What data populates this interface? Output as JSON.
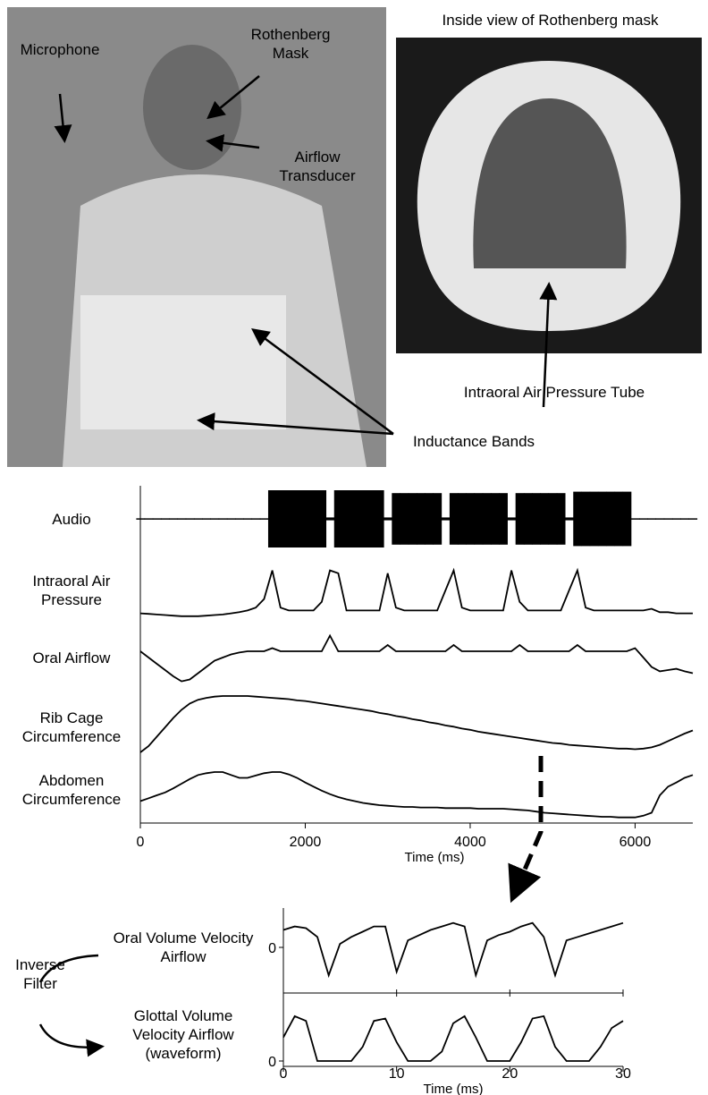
{
  "photos": {
    "left": {
      "labels": [
        "Microphone",
        "Rothenberg Mask",
        "Airflow Transducer",
        "Inductance Bands"
      ]
    },
    "right": {
      "title": "Inside view of Rothenberg mask",
      "labels": [
        "Intraoral Air Pressure Tube"
      ]
    }
  },
  "inverse_filter": "Inverse Filter",
  "chart_data": [
    {
      "type": "line",
      "xlabel": "Time (ms)",
      "xlim": [
        0,
        6700
      ],
      "xticks": [
        0,
        2000,
        4000,
        6000
      ],
      "ylim": [
        0,
        1
      ],
      "x": [
        0,
        100,
        200,
        300,
        400,
        500,
        600,
        700,
        800,
        900,
        1000,
        1100,
        1200,
        1300,
        1400,
        1500,
        1600,
        1700,
        1800,
        1900,
        2000,
        2100,
        2200,
        2300,
        2400,
        2500,
        2600,
        2700,
        2800,
        2900,
        3000,
        3100,
        3200,
        3300,
        3400,
        3500,
        3600,
        3700,
        3800,
        3900,
        4000,
        4100,
        4200,
        4300,
        4400,
        4500,
        4600,
        4700,
        4800,
        4900,
        5000,
        5100,
        5200,
        5300,
        5400,
        5500,
        5600,
        5700,
        5800,
        5900,
        6000,
        6100,
        6200,
        6300,
        6400,
        6500,
        6600,
        6700
      ],
      "series": [
        {
          "name": "Audio",
          "style": "envelope",
          "color": "#000",
          "values": [
            0.02,
            0.02,
            0.02,
            0.02,
            0.02,
            0.02,
            0.02,
            0.02,
            0.02,
            0.02,
            0.02,
            0.02,
            0.02,
            0.02,
            0.02,
            0.02,
            1,
            1,
            1,
            1,
            1,
            1,
            1,
            0.05,
            1,
            1,
            1,
            1,
            1,
            1,
            0.05,
            0.9,
            0.9,
            0.9,
            0.9,
            0.9,
            0.9,
            0.05,
            0.9,
            0.9,
            0.9,
            0.9,
            0.9,
            0.9,
            0.9,
            0.05,
            0.9,
            0.9,
            0.9,
            0.9,
            0.9,
            0.9,
            0.05,
            0.95,
            0.95,
            0.95,
            0.95,
            0.95,
            0.95,
            0.95,
            0.02,
            0.02,
            0.02,
            0.02,
            0.02,
            0.02,
            0.02,
            0.02
          ]
        },
        {
          "name": "Intraoral Air Pressure",
          "style": "line",
          "color": "#000",
          "values": [
            0.1,
            0.09,
            0.08,
            0.07,
            0.06,
            0.05,
            0.05,
            0.05,
            0.06,
            0.07,
            0.08,
            0.1,
            0.12,
            0.15,
            0.2,
            0.35,
            0.85,
            0.2,
            0.15,
            0.15,
            0.15,
            0.15,
            0.3,
            0.85,
            0.8,
            0.15,
            0.15,
            0.15,
            0.15,
            0.15,
            0.8,
            0.2,
            0.15,
            0.15,
            0.15,
            0.15,
            0.15,
            0.5,
            0.85,
            0.2,
            0.15,
            0.15,
            0.15,
            0.15,
            0.15,
            0.85,
            0.3,
            0.15,
            0.15,
            0.15,
            0.15,
            0.15,
            0.5,
            0.85,
            0.2,
            0.15,
            0.15,
            0.15,
            0.15,
            0.15,
            0.15,
            0.15,
            0.18,
            0.12,
            0.12,
            0.1,
            0.1,
            0.1
          ]
        },
        {
          "name": "Oral Airflow",
          "style": "line",
          "color": "#000",
          "values": [
            0.6,
            0.5,
            0.4,
            0.3,
            0.2,
            0.12,
            0.15,
            0.25,
            0.35,
            0.45,
            0.5,
            0.55,
            0.58,
            0.6,
            0.6,
            0.6,
            0.65,
            0.6,
            0.6,
            0.6,
            0.6,
            0.6,
            0.6,
            0.85,
            0.6,
            0.6,
            0.6,
            0.6,
            0.6,
            0.6,
            0.7,
            0.6,
            0.6,
            0.6,
            0.6,
            0.6,
            0.6,
            0.6,
            0.7,
            0.6,
            0.6,
            0.6,
            0.6,
            0.6,
            0.6,
            0.6,
            0.7,
            0.6,
            0.6,
            0.6,
            0.6,
            0.6,
            0.6,
            0.7,
            0.6,
            0.6,
            0.6,
            0.6,
            0.6,
            0.6,
            0.65,
            0.5,
            0.35,
            0.28,
            0.3,
            0.32,
            0.28,
            0.25
          ]
        },
        {
          "name": "Rib Cage Circumference",
          "style": "line",
          "color": "#000",
          "values": [
            0.1,
            0.2,
            0.35,
            0.5,
            0.65,
            0.78,
            0.88,
            0.94,
            0.97,
            0.99,
            1,
            1,
            1,
            1,
            0.99,
            0.98,
            0.97,
            0.96,
            0.95,
            0.93,
            0.92,
            0.9,
            0.88,
            0.86,
            0.84,
            0.82,
            0.8,
            0.78,
            0.76,
            0.73,
            0.71,
            0.68,
            0.66,
            0.63,
            0.61,
            0.58,
            0.56,
            0.53,
            0.51,
            0.48,
            0.46,
            0.43,
            0.41,
            0.39,
            0.37,
            0.35,
            0.33,
            0.31,
            0.29,
            0.27,
            0.25,
            0.24,
            0.22,
            0.21,
            0.2,
            0.19,
            0.18,
            0.17,
            0.16,
            0.16,
            0.15,
            0.16,
            0.18,
            0.22,
            0.28,
            0.34,
            0.4,
            0.45
          ]
        },
        {
          "name": "Abdomen Circumference",
          "style": "line",
          "color": "#000",
          "values": [
            0.3,
            0.35,
            0.4,
            0.45,
            0.52,
            0.6,
            0.68,
            0.75,
            0.78,
            0.8,
            0.8,
            0.75,
            0.7,
            0.7,
            0.74,
            0.78,
            0.8,
            0.8,
            0.76,
            0.7,
            0.62,
            0.55,
            0.48,
            0.42,
            0.37,
            0.33,
            0.3,
            0.27,
            0.25,
            0.23,
            0.22,
            0.21,
            0.2,
            0.2,
            0.19,
            0.19,
            0.19,
            0.18,
            0.18,
            0.18,
            0.18,
            0.17,
            0.17,
            0.17,
            0.17,
            0.16,
            0.15,
            0.14,
            0.12,
            0.1,
            0.09,
            0.08,
            0.07,
            0.06,
            0.05,
            0.04,
            0.03,
            0.03,
            0.02,
            0.02,
            0.02,
            0.05,
            0.1,
            0.4,
            0.55,
            0.62,
            0.7,
            0.75
          ]
        }
      ]
    },
    {
      "type": "line",
      "xlabel": "Time (ms)",
      "xlim": [
        0,
        30
      ],
      "xticks": [
        0,
        10,
        20,
        30
      ],
      "x": [
        0,
        1,
        2,
        3,
        4,
        5,
        6,
        7,
        8,
        9,
        10,
        11,
        12,
        13,
        14,
        15,
        16,
        17,
        18,
        19,
        20,
        21,
        22,
        23,
        24,
        25,
        26,
        27,
        28,
        29,
        30
      ],
      "series": [
        {
          "name": "Oral Volume Velocity Airflow",
          "color": "#000",
          "ylim": [
            -1,
            1
          ],
          "yticks": [
            0
          ],
          "values": [
            0.5,
            0.6,
            0.55,
            0.3,
            -0.8,
            0.1,
            0.3,
            0.45,
            0.6,
            0.6,
            -0.7,
            0.2,
            0.35,
            0.5,
            0.6,
            0.7,
            0.6,
            -0.8,
            0.2,
            0.35,
            0.45,
            0.6,
            0.7,
            0.3,
            -0.8,
            0.2,
            0.3,
            0.4,
            0.5,
            0.6,
            0.7
          ]
        },
        {
          "name": "Glottal Volume Velocity Airflow (waveform)",
          "color": "#000",
          "ylim": [
            0,
            1.1
          ],
          "yticks": [
            0
          ],
          "values": [
            0.5,
            0.95,
            0.85,
            0,
            0,
            0,
            0,
            0.3,
            0.85,
            0.9,
            0.4,
            0,
            0,
            0,
            0.2,
            0.8,
            0.95,
            0.5,
            0,
            0,
            0,
            0.4,
            0.9,
            0.95,
            0.3,
            0,
            0,
            0,
            0.3,
            0.7,
            0.85
          ]
        }
      ]
    }
  ]
}
